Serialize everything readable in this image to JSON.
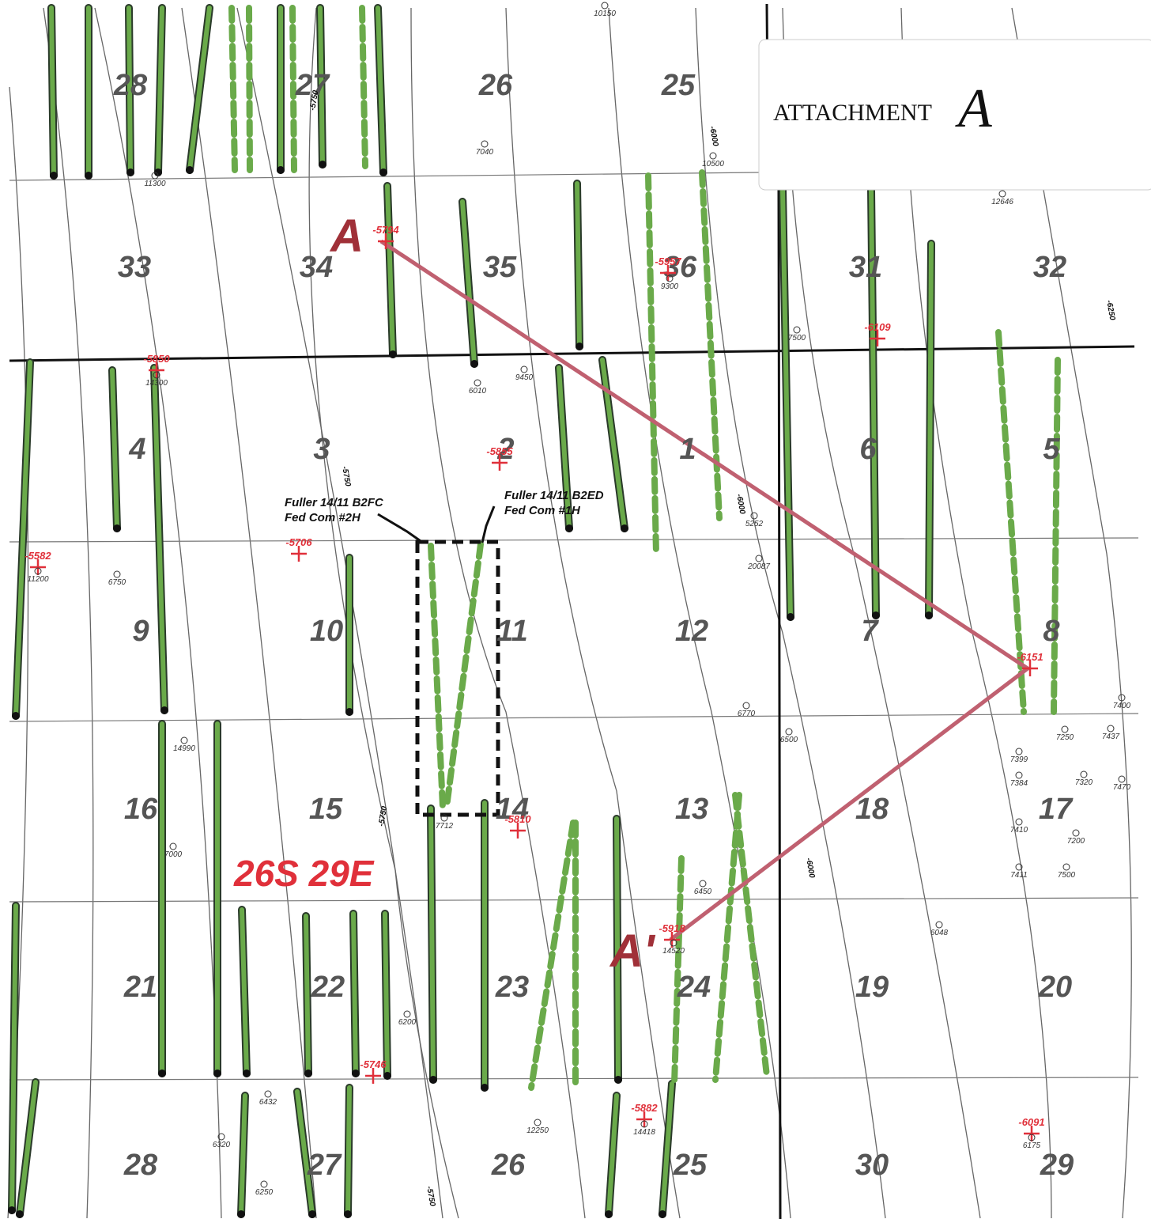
{
  "attachment": {
    "title": "ATTACHMENT",
    "mark": "A"
  },
  "township": "26S 29E",
  "cross_section": {
    "start": "A",
    "end": "A'"
  },
  "sections": [
    "28",
    "27",
    "26",
    "25",
    "33",
    "34",
    "35",
    "36",
    "31",
    "32",
    "4",
    "3",
    "2",
    "1",
    "6",
    "5",
    "9",
    "10",
    "11",
    "12",
    "7",
    "8",
    "16",
    "15",
    "14",
    "13",
    "18",
    "17",
    "21",
    "22",
    "23",
    "24",
    "19",
    "20",
    "28",
    "27",
    "26",
    "25",
    "30",
    "29"
  ],
  "wells": [
    {
      "name": "Fuller 14/11 B2FC",
      "detail": "Fed Com #2H"
    },
    {
      "name": "Fuller 14/11 B2ED",
      "detail": "Fed Com #1H"
    }
  ],
  "tops": [
    "-5794",
    "-5957",
    "-6109",
    "-5850",
    "-5855",
    "-5582",
    "-5706",
    "-6151",
    "-5810",
    "-5918",
    "-5746",
    "-5882",
    "-6091"
  ],
  "contours": [
    "-5750",
    "-6000",
    "-6250",
    "-5750",
    "-6000",
    "-5750",
    "-6000",
    "-5750"
  ],
  "depths": [
    "10150",
    "11300",
    "7040",
    "10500",
    "12646",
    "9300",
    "7500",
    "9450",
    "6010",
    "14300",
    "11200",
    "6750",
    "5252",
    "20087",
    "6770",
    "6500",
    "7400",
    "7250",
    "7437",
    "14990",
    "7000",
    "7712",
    "6450",
    "14520",
    "7399",
    "7384",
    "7320",
    "7470",
    "7410",
    "7200",
    "7411",
    "7500",
    "6048",
    "6200",
    "6432",
    "6320",
    "12250",
    "14418",
    "6175",
    "6250"
  ]
}
